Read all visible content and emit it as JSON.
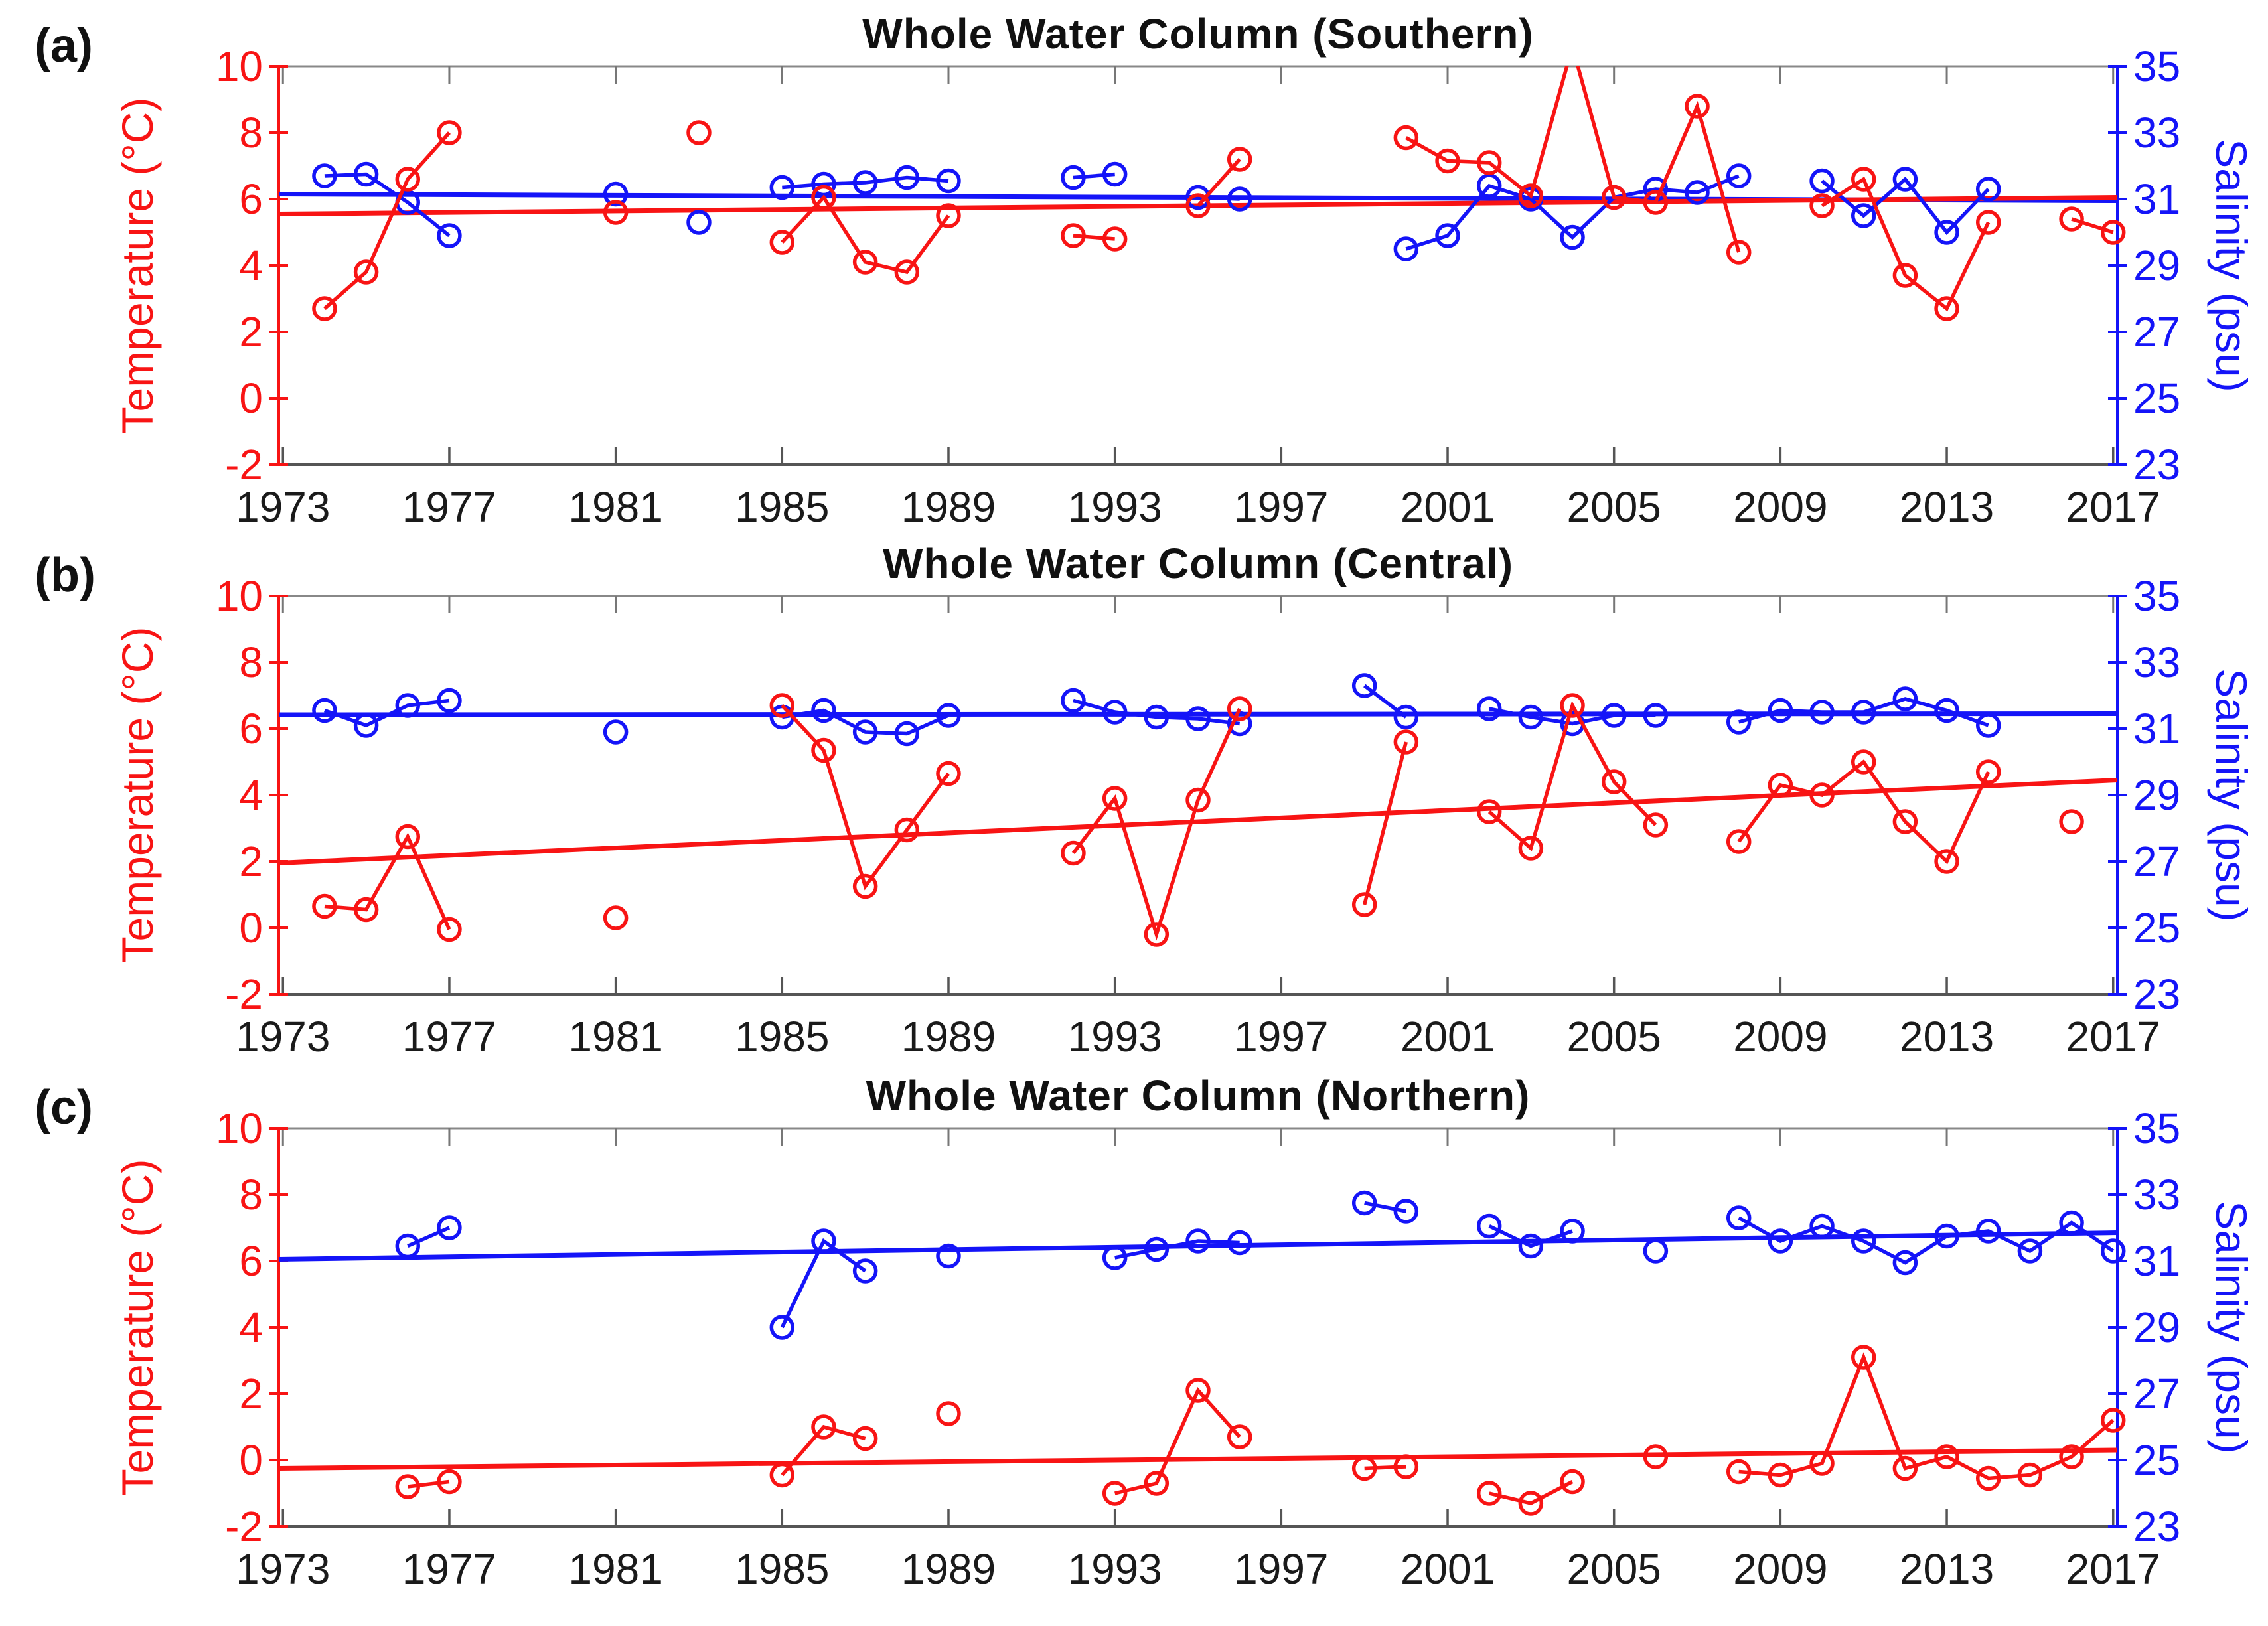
{
  "figure": {
    "background": "#ffffff",
    "temperature_color": "#f81414",
    "salinity_color": "#1414f8",
    "tick_label_color": "#1a1a1a",
    "spine_top_color": "#888888",
    "spine_bottom_color": "#555555"
  },
  "chart_data": [
    {
      "type": "line",
      "panel_label": "(a)",
      "title": "Whole Water Column (Southern)",
      "x_axis": {
        "range": [
          1972.9,
          2017.1
        ],
        "ticks": [
          1973,
          1977,
          1981,
          1985,
          1989,
          1993,
          1997,
          2001,
          2005,
          2009,
          2013,
          2017
        ]
      },
      "y_left": {
        "label": "Temperature (°C)",
        "range": [
          -2,
          10
        ],
        "ticks": [
          10,
          8,
          6,
          4,
          2,
          0,
          -2
        ],
        "color": "#f81414"
      },
      "y_right": {
        "label": "Salinity (psu)",
        "range": [
          23,
          35
        ],
        "ticks": [
          35,
          33,
          31,
          29,
          27,
          25,
          23
        ],
        "color": "#1414f8"
      },
      "temperature": {
        "segments": [
          [
            [
              1974,
              2.7
            ],
            [
              1975,
              3.8
            ],
            [
              1976,
              6.6
            ],
            [
              1977,
              8.0
            ]
          ],
          [
            [
              1981,
              5.6
            ]
          ],
          [
            [
              1983,
              8.0
            ]
          ],
          [
            [
              1985,
              4.7
            ],
            [
              1986,
              6.05
            ],
            [
              1987,
              4.1
            ],
            [
              1988,
              3.8
            ],
            [
              1989,
              5.5
            ]
          ],
          [
            [
              1992,
              4.9
            ],
            [
              1993,
              4.8
            ]
          ],
          [
            [
              1995,
              5.8
            ],
            [
              1996,
              7.2
            ]
          ],
          [
            [
              2000,
              7.85
            ],
            [
              2001,
              7.15
            ],
            [
              2002,
              7.1
            ],
            [
              2003,
              6.1
            ],
            [
              2004,
              10.6
            ],
            [
              2005,
              6.05
            ],
            [
              2006,
              5.9
            ],
            [
              2007,
              8.8
            ],
            [
              2008,
              4.4
            ]
          ],
          [
            [
              2010,
              5.8
            ],
            [
              2011,
              6.6
            ],
            [
              2012,
              3.7
            ],
            [
              2013,
              2.7
            ],
            [
              2014,
              5.3
            ]
          ],
          [
            [
              2016,
              5.4
            ],
            [
              2017,
              5.0
            ]
          ]
        ],
        "trend": [
          [
            1972.9,
            5.55
          ],
          [
            2017.1,
            6.05
          ]
        ]
      },
      "salinity": {
        "segments": [
          [
            [
              1974,
              31.7
            ],
            [
              1975,
              31.75
            ],
            [
              1976,
              30.9
            ],
            [
              1977,
              29.9
            ]
          ],
          [
            [
              1981,
              31.15
            ]
          ],
          [
            [
              1983,
              30.3
            ]
          ],
          [
            [
              1985,
              31.35
            ],
            [
              1986,
              31.45
            ],
            [
              1987,
              31.5
            ],
            [
              1988,
              31.65
            ],
            [
              1989,
              31.55
            ]
          ],
          [
            [
              1992,
              31.65
            ],
            [
              1993,
              31.75
            ]
          ],
          [
            [
              1995,
              31.05
            ],
            [
              1996,
              31.0
            ]
          ],
          [
            [
              2000,
              29.5
            ],
            [
              2001,
              29.9
            ],
            [
              2002,
              31.4
            ],
            [
              2003,
              31.0
            ],
            [
              2004,
              29.85
            ],
            [
              2005,
              31.05
            ],
            [
              2006,
              31.3
            ],
            [
              2007,
              31.2
            ],
            [
              2008,
              31.7
            ]
          ],
          [
            [
              2010,
              31.55
            ],
            [
              2011,
              30.5
            ],
            [
              2012,
              31.6
            ],
            [
              2013,
              30.0
            ],
            [
              2014,
              31.3
            ]
          ]
        ],
        "trend": [
          [
            1972.9,
            31.15
          ],
          [
            2017.1,
            30.95
          ]
        ]
      }
    },
    {
      "type": "line",
      "panel_label": "(b)",
      "title": "Whole Water Column (Central)",
      "x_axis": {
        "range": [
          1972.9,
          2017.1
        ],
        "ticks": [
          1973,
          1977,
          1981,
          1985,
          1989,
          1993,
          1997,
          2001,
          2005,
          2009,
          2013,
          2017
        ]
      },
      "y_left": {
        "label": "Temperature (°C)",
        "range": [
          -2,
          10
        ],
        "ticks": [
          10,
          8,
          6,
          4,
          2,
          0,
          -2
        ],
        "color": "#f81414"
      },
      "y_right": {
        "label": "Salinity (psu)",
        "range": [
          23,
          35
        ],
        "ticks": [
          35,
          33,
          31,
          29,
          27,
          25,
          23
        ],
        "color": "#1414f8"
      },
      "temperature": {
        "segments": [
          [
            [
              1974,
              0.65
            ],
            [
              1975,
              0.55
            ],
            [
              1976,
              2.75
            ],
            [
              1977,
              -0.05
            ]
          ],
          [
            [
              1981,
              0.3
            ]
          ],
          [
            [
              1985,
              6.7
            ],
            [
              1986,
              5.35
            ],
            [
              1987,
              1.25
            ],
            [
              1988,
              2.95
            ],
            [
              1989,
              4.65
            ]
          ],
          [
            [
              1992,
              2.25
            ],
            [
              1993,
              3.9
            ],
            [
              1994,
              -0.2
            ],
            [
              1995,
              3.85
            ],
            [
              1996,
              6.6
            ]
          ],
          [
            [
              1999,
              0.7
            ],
            [
              2000,
              5.6
            ]
          ],
          [
            [
              2002,
              3.5
            ],
            [
              2003,
              2.4
            ],
            [
              2004,
              6.7
            ],
            [
              2005,
              4.4
            ],
            [
              2006,
              3.1
            ]
          ],
          [
            [
              2008,
              2.6
            ],
            [
              2009,
              4.3
            ],
            [
              2010,
              4.0
            ],
            [
              2011,
              5.0
            ],
            [
              2012,
              3.2
            ],
            [
              2013,
              2.0
            ],
            [
              2014,
              4.7
            ]
          ],
          [
            [
              2016,
              3.2
            ]
          ]
        ],
        "trend": [
          [
            1972.9,
            1.95
          ],
          [
            2017.1,
            4.45
          ]
        ]
      },
      "salinity": {
        "segments": [
          [
            [
              1974,
              31.55
            ],
            [
              1975,
              31.1
            ],
            [
              1976,
              31.7
            ],
            [
              1977,
              31.85
            ]
          ],
          [
            [
              1981,
              30.9
            ]
          ],
          [
            [
              1985,
              31.35
            ],
            [
              1986,
              31.55
            ],
            [
              1987,
              30.9
            ],
            [
              1988,
              30.85
            ],
            [
              1989,
              31.4
            ]
          ],
          [
            [
              1992,
              31.85
            ],
            [
              1993,
              31.5
            ],
            [
              1994,
              31.35
            ],
            [
              1995,
              31.3
            ],
            [
              1996,
              31.15
            ]
          ],
          [
            [
              1999,
              32.3
            ],
            [
              2000,
              31.35
            ]
          ],
          [
            [
              2002,
              31.6
            ],
            [
              2003,
              31.35
            ],
            [
              2004,
              31.15
            ],
            [
              2005,
              31.4
            ],
            [
              2006,
              31.4
            ]
          ],
          [
            [
              2008,
              31.2
            ],
            [
              2009,
              31.55
            ],
            [
              2010,
              31.5
            ],
            [
              2011,
              31.5
            ],
            [
              2012,
              31.9
            ],
            [
              2013,
              31.55
            ],
            [
              2014,
              31.1
            ]
          ]
        ],
        "trend": [
          [
            1972.9,
            31.42
          ],
          [
            2017.1,
            31.45
          ]
        ]
      }
    },
    {
      "type": "line",
      "panel_label": "(c)",
      "title": "Whole Water Column (Northern)",
      "x_axis": {
        "range": [
          1972.9,
          2017.1
        ],
        "ticks": [
          1973,
          1977,
          1981,
          1985,
          1989,
          1993,
          1997,
          2001,
          2005,
          2009,
          2013,
          2017
        ]
      },
      "y_left": {
        "label": "Temperature (°C)",
        "range": [
          -2,
          10
        ],
        "ticks": [
          10,
          8,
          6,
          4,
          2,
          0,
          -2
        ],
        "color": "#f81414"
      },
      "y_right": {
        "label": "Salinity (psu)",
        "range": [
          23,
          35
        ],
        "ticks": [
          35,
          33,
          31,
          29,
          27,
          25,
          23
        ],
        "color": "#1414f8"
      },
      "temperature": {
        "segments": [
          [
            [
              1976,
              -0.8
            ],
            [
              1977,
              -0.65
            ]
          ],
          [
            [
              1985,
              -0.45
            ],
            [
              1986,
              1.0
            ],
            [
              1987,
              0.65
            ]
          ],
          [
            [
              1989,
              1.4
            ]
          ],
          [
            [
              1993,
              -1.0
            ],
            [
              1994,
              -0.7
            ],
            [
              1995,
              2.1
            ],
            [
              1996,
              0.7
            ]
          ],
          [
            [
              1999,
              -0.25
            ],
            [
              2000,
              -0.2
            ]
          ],
          [
            [
              2002,
              -1.0
            ],
            [
              2003,
              -1.3
            ],
            [
              2004,
              -0.65
            ]
          ],
          [
            [
              2006,
              0.1
            ]
          ],
          [
            [
              2008,
              -0.35
            ],
            [
              2009,
              -0.45
            ],
            [
              2010,
              -0.1
            ],
            [
              2011,
              3.1
            ],
            [
              2012,
              -0.25
            ],
            [
              2013,
              0.1
            ],
            [
              2014,
              -0.55
            ],
            [
              2015,
              -0.45
            ],
            [
              2016,
              0.1
            ],
            [
              2017,
              1.2
            ]
          ]
        ],
        "trend": [
          [
            1972.9,
            -0.25
          ],
          [
            2017.1,
            0.3
          ]
        ]
      },
      "salinity": {
        "segments": [
          [
            [
              1976,
              31.45
            ],
            [
              1977,
              32.0
            ]
          ],
          [
            [
              1985,
              29.0
            ],
            [
              1986,
              31.6
            ],
            [
              1987,
              30.7
            ]
          ],
          [
            [
              1989,
              31.15
            ]
          ],
          [
            [
              1993,
              31.1
            ],
            [
              1994,
              31.35
            ],
            [
              1995,
              31.6
            ],
            [
              1996,
              31.55
            ]
          ],
          [
            [
              1999,
              32.75
            ],
            [
              2000,
              32.5
            ]
          ],
          [
            [
              2002,
              32.05
            ],
            [
              2003,
              31.45
            ],
            [
              2004,
              31.9
            ]
          ],
          [
            [
              2006,
              31.3
            ]
          ],
          [
            [
              2008,
              32.3
            ],
            [
              2009,
              31.6
            ],
            [
              2010,
              32.05
            ],
            [
              2011,
              31.6
            ],
            [
              2012,
              30.95
            ],
            [
              2013,
              31.75
            ],
            [
              2014,
              31.9
            ],
            [
              2015,
              31.3
            ],
            [
              2016,
              32.15
            ],
            [
              2017,
              31.3
            ]
          ]
        ],
        "trend": [
          [
            1972.9,
            31.05
          ],
          [
            2017.1,
            31.85
          ]
        ]
      }
    }
  ]
}
